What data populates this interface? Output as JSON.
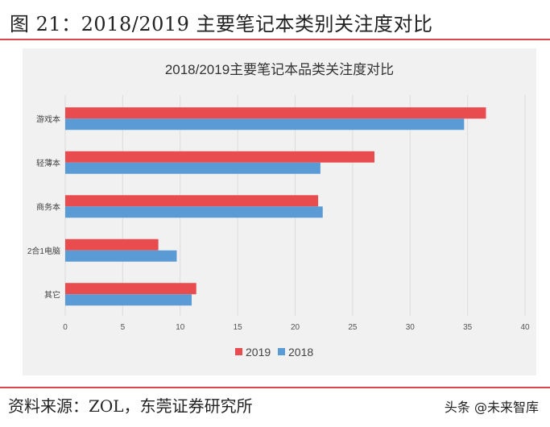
{
  "figure_title": "图 21：2018/2019 主要笔记本类别关注度对比",
  "source": "资料来源：ZOL，东莞证券研究所",
  "watermark": "头条 @未来智库",
  "chart_data": {
    "type": "bar",
    "orientation": "horizontal",
    "title": "2018/2019主要笔记本品类关注度对比",
    "categories": [
      "游戏本",
      "轻薄本",
      "商务本",
      "2合1电脑",
      "其它"
    ],
    "series": [
      {
        "name": "2019",
        "color": "#e84c4f",
        "values": [
          36.6,
          26.9,
          22.0,
          8.1,
          11.4
        ]
      },
      {
        "name": "2018",
        "color": "#5b9bd5",
        "values": [
          34.7,
          22.2,
          22.4,
          9.7,
          11.0
        ]
      }
    ],
    "xlim": [
      0,
      40
    ],
    "xticks": [
      "0",
      "5",
      "10",
      "15",
      "20",
      "25",
      "30",
      "35",
      "40"
    ],
    "grid": "vertical",
    "legend": "bottom"
  }
}
